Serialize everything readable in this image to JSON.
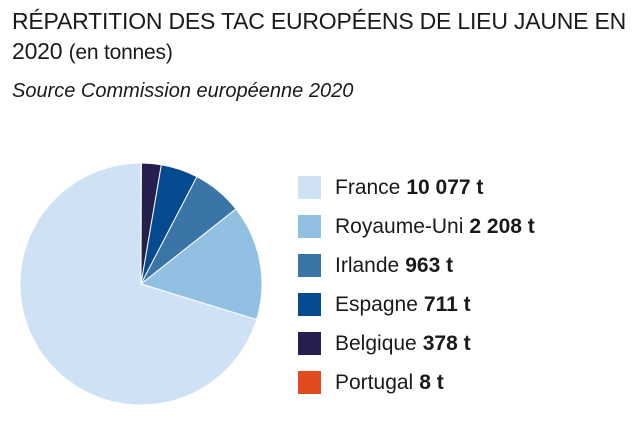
{
  "header": {
    "title": "RÉPARTITION DES TAC EUROPÉENS DE LIEU JAUNE EN 2020",
    "title_unit": "(en tonnes)",
    "source": "Source Commission européenne 2020"
  },
  "chart_data": {
    "type": "pie",
    "title": "RÉPARTITION DES TAC EUROPÉENS DE LIEU JAUNE EN 2020 (en tonnes)",
    "subtitle": "Source Commission européenne 2020",
    "unit": "t",
    "start": "top",
    "direction": "clockwise",
    "slices_order_clockwise_from_top": [
      "Portugal",
      "Belgique",
      "Espagne",
      "Irlande",
      "Royaume-Uni",
      "France"
    ],
    "legend_position": "right",
    "series": [
      {
        "name": "France",
        "value": 10077,
        "label": "10 077 t",
        "color": "#cfe1f5"
      },
      {
        "name": "Royaume-Uni",
        "value": 2208,
        "label": "2 208 t",
        "color": "#92c0e3"
      },
      {
        "name": "Irlande",
        "value": 963,
        "label": "963 t",
        "color": "#3b74a6"
      },
      {
        "name": "Espagne",
        "value": 711,
        "label": "711 t",
        "color": "#064a8f"
      },
      {
        "name": "Belgique",
        "value": 378,
        "label": "378 t",
        "color": "#241f4e"
      },
      {
        "name": "Portugal",
        "value": 8,
        "label": "8 t",
        "color": "#e04b1f"
      }
    ]
  }
}
